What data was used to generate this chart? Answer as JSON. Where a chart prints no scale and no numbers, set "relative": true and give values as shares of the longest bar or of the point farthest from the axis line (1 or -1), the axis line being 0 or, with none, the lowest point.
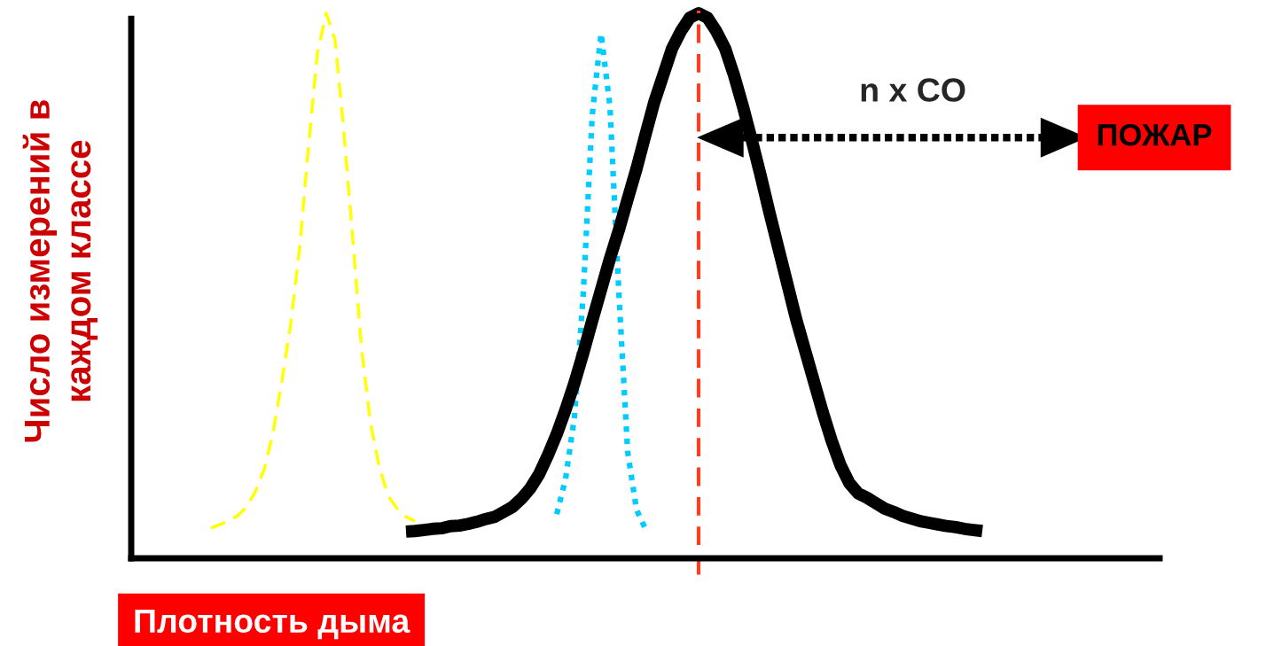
{
  "chart_data": {
    "type": "line",
    "relative": true,
    "marker": "none",
    "xlabel": "Плотность дыма",
    "ylabel": "Число измерений в\nкаждом классе",
    "categories": [
      null,
      null,
      null,
      null,
      null,
      null,
      null,
      null,
      null,
      null,
      null,
      null,
      null,
      null,
      null,
      null,
      null,
      null,
      null,
      null,
      null,
      null,
      null,
      null,
      null,
      null,
      null,
      null,
      null,
      null,
      null,
      null,
      null,
      null,
      null,
      null,
      null,
      null,
      null,
      null,
      null,
      null,
      null,
      null,
      null,
      null,
      null,
      null,
      null,
      null,
      null,
      null,
      null,
      null,
      null,
      null,
      null,
      null,
      null,
      null,
      null,
      null,
      null,
      null,
      null,
      null,
      null,
      null,
      null,
      null,
      null,
      null,
      null,
      null,
      null,
      null,
      null,
      null,
      null,
      null,
      null,
      null,
      null,
      null,
      null,
      null,
      null,
      null,
      null,
      null,
      null,
      null,
      null,
      null,
      null,
      null,
      null,
      null,
      null,
      null,
      null,
      null,
      null,
      null,
      null,
      null,
      null,
      null,
      null,
      null,
      null,
      null,
      null,
      null,
      null,
      null,
      null
    ],
    "series": [
      {
        "color": "#ffff00",
        "line_style": "dashed",
        "values": [
          null,
          null,
          null,
          null,
          null,
          null,
          null,
          null,
          null,
          0.055,
          0.062,
          0.068,
          0.078,
          0.094,
          0.122,
          0.163,
          0.231,
          0.325,
          0.431,
          0.569,
          0.756,
          0.927,
          1.0,
          0.951,
          0.78,
          0.585,
          0.382,
          0.247,
          0.166,
          0.114,
          0.091,
          0.076,
          0.068,
          null,
          null,
          null,
          null,
          null,
          null,
          null,
          null,
          null,
          null,
          null,
          null,
          null,
          null,
          null,
          null,
          null,
          null,
          null,
          null,
          null,
          null,
          null,
          null,
          null,
          null,
          null,
          null,
          null,
          null,
          null,
          null,
          null,
          null,
          null,
          null,
          null,
          null,
          null,
          null,
          null,
          null,
          null,
          null,
          null,
          null,
          null,
          null,
          null,
          null,
          null,
          null,
          null,
          null,
          null,
          null,
          null,
          null,
          null,
          null,
          null,
          null,
          null,
          null,
          null,
          null,
          null,
          null,
          null,
          null,
          null,
          null,
          null,
          null,
          null,
          null,
          null,
          null,
          null,
          null,
          null,
          null,
          null,
          null
        ]
      },
      {
        "color": "#00ccff",
        "line_style": "dotted",
        "values": [
          null,
          null,
          null,
          null,
          null,
          null,
          null,
          null,
          null,
          null,
          null,
          null,
          null,
          null,
          null,
          null,
          null,
          null,
          null,
          null,
          null,
          null,
          null,
          null,
          null,
          null,
          null,
          null,
          null,
          null,
          null,
          null,
          null,
          null,
          null,
          null,
          null,
          null,
          null,
          null,
          null,
          null,
          null,
          null,
          null,
          null,
          null,
          null,
          0.081,
          0.146,
          0.26,
          0.488,
          0.813,
          0.963,
          0.829,
          0.488,
          0.195,
          0.089,
          0.054,
          null,
          null,
          null,
          null,
          null,
          null,
          null,
          null,
          null,
          null,
          null,
          null,
          null,
          null,
          null,
          null,
          null,
          null,
          null,
          null,
          null,
          null,
          null,
          null,
          null,
          null,
          null,
          null,
          null,
          null,
          null,
          null,
          null,
          null,
          null,
          null,
          null,
          null,
          null,
          null,
          null,
          null,
          null,
          null,
          null,
          null,
          null,
          null,
          null,
          null,
          null,
          null,
          null,
          null,
          null,
          null,
          null,
          null
        ]
      },
      {
        "color": "#000000",
        "line_style": "solid",
        "values": [
          null,
          null,
          null,
          null,
          null,
          null,
          null,
          null,
          null,
          null,
          null,
          null,
          null,
          null,
          null,
          null,
          null,
          null,
          null,
          null,
          null,
          null,
          null,
          null,
          null,
          null,
          null,
          null,
          null,
          null,
          null,
          0.049,
          0.05,
          0.052,
          0.054,
          0.055,
          0.059,
          0.06,
          0.063,
          0.067,
          0.072,
          0.076,
          0.085,
          0.094,
          0.109,
          0.128,
          0.154,
          0.189,
          0.228,
          0.273,
          0.322,
          0.377,
          0.436,
          0.493,
          0.55,
          0.602,
          0.659,
          0.715,
          0.777,
          0.837,
          0.886,
          0.935,
          0.967,
          0.992,
          1.0,
          0.992,
          0.967,
          0.935,
          0.886,
          0.829,
          0.767,
          0.702,
          0.634,
          0.569,
          0.504,
          0.439,
          0.382,
          0.325,
          0.268,
          0.216,
          0.171,
          0.138,
          0.119,
          0.111,
          0.101,
          0.091,
          0.085,
          0.078,
          0.073,
          0.068,
          0.065,
          0.062,
          0.059,
          0.057,
          0.054,
          0.052,
          0.05,
          null,
          null,
          null,
          null,
          null,
          null,
          null,
          null,
          null,
          null,
          null,
          null,
          null,
          null,
          null,
          null,
          null,
          null,
          null,
          null
        ]
      }
    ],
    "annotations": [
      "ПОЖАР",
      "n x CO"
    ]
  }
}
